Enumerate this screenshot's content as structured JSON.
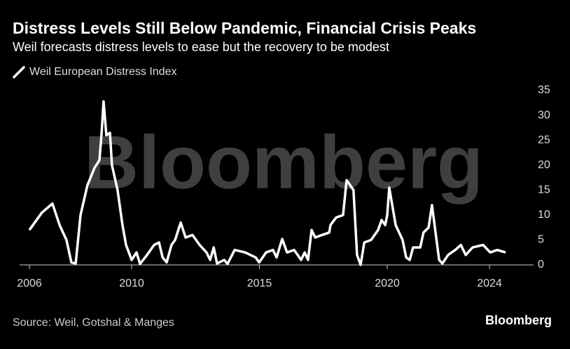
{
  "chart_data": {
    "type": "line",
    "title": "Distress Levels Still Below Pandemic, Financial Crisis Peaks",
    "subtitle": "Weil forecasts distress levels to ease but the recovery to be modest",
    "watermark": "Bloomberg",
    "source": "Source: Weil, Gotshal & Manges",
    "brand": "Bloomberg",
    "x": [
      2006.0,
      2006.49,
      2006.9,
      2007.18,
      2007.45,
      2007.64,
      2007.81,
      2008.0,
      2008.27,
      2008.55,
      2008.74,
      2008.82,
      2008.9,
      2009.01,
      2009.15,
      2009.23,
      2009.45,
      2009.64,
      2009.78,
      2010.0,
      2010.19,
      2010.33,
      2010.6,
      2010.88,
      2011.07,
      2011.21,
      2011.37,
      2011.56,
      2011.7,
      2011.92,
      2012.11,
      2012.38,
      2012.66,
      2012.93,
      2013.07,
      2013.21,
      2013.34,
      2013.62,
      2013.75,
      2014.03,
      2014.44,
      2014.85,
      2014.99,
      2015.26,
      2015.53,
      2015.67,
      2015.89,
      2016.08,
      2016.36,
      2016.63,
      2016.77,
      2016.9,
      2017.04,
      2017.18,
      2017.45,
      2017.73,
      2017.78,
      2018.0,
      2018.27,
      2018.41,
      2018.68,
      2018.82,
      2018.96,
      2019.1,
      2019.37,
      2019.64,
      2019.78,
      2019.92,
      2020.0,
      2020.08,
      2020.33,
      2020.6,
      2020.74,
      2020.88,
      2021.01,
      2021.29,
      2021.42,
      2021.62,
      2021.75,
      2021.89,
      2022.03,
      2022.16,
      2022.38,
      2022.66,
      2022.88,
      2023.07,
      2023.34,
      2023.75,
      2024.03,
      2024.3,
      2024.63
    ],
    "series": [
      {
        "name": "Weil European Distress Index",
        "color": "#ffffff",
        "values": [
          7,
          10.5,
          12.3,
          8,
          5,
          0.5,
          0.3,
          10,
          16,
          19.5,
          21,
          26,
          32.8,
          26,
          26.5,
          20,
          15,
          8,
          4,
          1,
          2.5,
          0.2,
          2,
          4,
          4.5,
          1.5,
          0.5,
          4,
          5,
          8.5,
          5.5,
          6,
          4,
          2.5,
          1,
          3.5,
          0.3,
          1,
          0.2,
          3,
          2.5,
          1.5,
          0.5,
          2.5,
          3,
          1.5,
          5.2,
          2.5,
          3,
          1,
          2.5,
          1,
          7,
          5.5,
          6,
          6.5,
          8,
          9.5,
          10,
          17,
          15,
          2,
          0,
          4.5,
          5,
          7,
          9,
          8,
          10,
          15.5,
          8,
          5,
          1.5,
          1,
          3.5,
          3.5,
          6.5,
          7.5,
          12,
          6.5,
          1,
          0.3,
          2,
          3,
          4,
          2,
          3.5,
          4,
          2.5,
          3,
          2.5
        ]
      }
    ],
    "xlim": [
      2006,
      2024.63
    ],
    "xticks": [
      2006,
      2010,
      2015,
      2020,
      2024
    ],
    "ylim": [
      0,
      35
    ],
    "yticks": [
      0,
      5,
      10,
      15,
      20,
      25,
      30,
      35
    ],
    "grid": false
  }
}
